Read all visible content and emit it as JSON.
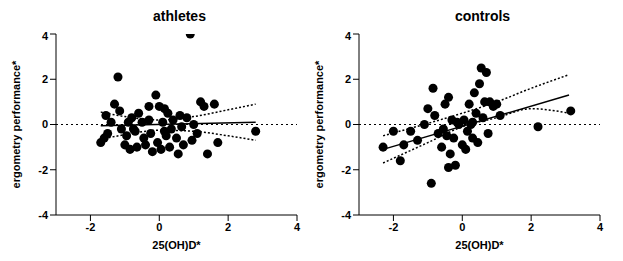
{
  "chart_data": [
    {
      "type": "scatter",
      "title": "athletes",
      "x_label": "25(OH)D*",
      "y_label": "ergometry performance*",
      "color": "#000000",
      "xlim": [
        -3,
        4
      ],
      "ylim": [
        -4,
        4
      ],
      "xticks": [
        -2,
        0,
        2,
        4
      ],
      "yticks": [
        -4,
        -2,
        0,
        2,
        4
      ],
      "x": [
        -1.7,
        -1.6,
        -1.5,
        -1.55,
        -1.4,
        -1.3,
        -1.2,
        -1.15,
        -1.1,
        -1.0,
        -0.95,
        -0.9,
        -0.85,
        -0.8,
        -0.7,
        -0.65,
        -0.6,
        -0.5,
        -0.45,
        -0.4,
        -0.3,
        -0.25,
        -0.2,
        -0.1,
        -0.05,
        0,
        0.05,
        0.1,
        0.15,
        0.2,
        0.25,
        0.3,
        0.35,
        0.4,
        0.5,
        0.55,
        0.6,
        0.7,
        0.8,
        0.9,
        0.95,
        1.0,
        1.1,
        1.2,
        1.3,
        1.4,
        1.6,
        1.7,
        2.8,
        -0.3,
        0.15,
        0.65,
        -0.75
      ],
      "values": [
        -0.8,
        -0.6,
        -0.4,
        0.4,
        0.1,
        0.9,
        2.1,
        0.6,
        -0.2,
        -0.9,
        -0.5,
        0.1,
        -1.1,
        0.3,
        -0.3,
        -1.0,
        0.5,
        0.1,
        -0.6,
        -0.9,
        0.2,
        -0.4,
        -1.2,
        1.3,
        -0.8,
        0.8,
        -1.1,
        0.1,
        0.7,
        -0.5,
        0.5,
        -1.0,
        -0.2,
        0.2,
        -0.6,
        -1.3,
        0.4,
        -0.9,
        0.3,
        4.0,
        -0.7,
        0.0,
        -0.4,
        1.0,
        0.8,
        -1.3,
        0.9,
        -0.8,
        -0.3,
        0.8,
        -0.3,
        -0.1,
        -0.2
      ],
      "fit": {
        "x": [
          -1.7,
          2.8
        ],
        "values": [
          -0.05,
          0.1
        ]
      },
      "confidence_band": {
        "x": [
          -1.7,
          -1.0,
          0,
          1.0,
          2.0,
          2.8
        ],
        "upper": [
          0.55,
          0.35,
          0.2,
          0.35,
          0.65,
          0.9
        ],
        "lower": [
          -0.65,
          -0.45,
          -0.25,
          -0.3,
          -0.5,
          -0.7
        ]
      },
      "reference_y": 0
    },
    {
      "type": "scatter",
      "title": "controls",
      "x_label": "25(OH)D*",
      "y_label": "ergometry performance*",
      "color": "#000000",
      "xlim": [
        -3,
        4
      ],
      "ylim": [
        -4,
        4
      ],
      "xticks": [
        -2,
        0,
        2,
        4
      ],
      "yticks": [
        -4,
        -2,
        0,
        2,
        4
      ],
      "x": [
        -2.3,
        -2.0,
        -1.8,
        -1.7,
        -1.5,
        -1.3,
        -1.1,
        -1.0,
        -0.9,
        -0.85,
        -0.8,
        -0.7,
        -0.6,
        -0.55,
        -0.5,
        -0.45,
        -0.4,
        -0.35,
        -0.3,
        -0.25,
        -0.2,
        -0.15,
        -0.1,
        0,
        0.05,
        0.1,
        0.15,
        0.2,
        0.25,
        0.3,
        0.35,
        0.4,
        0.45,
        0.5,
        0.55,
        0.6,
        0.65,
        0.7,
        0.75,
        0.8,
        0.9,
        1.0,
        1.1,
        2.2,
        3.15,
        -0.4,
        0.3
      ],
      "values": [
        -1.0,
        -0.3,
        -1.6,
        -0.9,
        -0.3,
        -0.7,
        0.0,
        0.7,
        -2.6,
        1.6,
        0.4,
        -0.4,
        -1.0,
        -0.2,
        0.9,
        -0.5,
        1.2,
        -1.3,
        0.2,
        -0.6,
        -1.8,
        0.1,
        0.0,
        -0.9,
        0.2,
        -1.1,
        -0.3,
        0.9,
        0.0,
        -0.6,
        1.4,
        0.5,
        -0.8,
        1.8,
        2.5,
        0.3,
        1.0,
        2.3,
        -0.4,
        1.0,
        0.8,
        0.9,
        0.4,
        -0.1,
        0.6,
        -1.9,
        0.1
      ],
      "fit": {
        "x": [
          -2.3,
          3.1
        ],
        "values": [
          -1.1,
          1.3
        ]
      },
      "confidence_band": {
        "x": [
          -2.3,
          -1.0,
          0,
          1.0,
          2.0,
          3.1
        ],
        "upper": [
          -0.5,
          0.05,
          0.5,
          1.0,
          1.6,
          2.2
        ],
        "lower": [
          -1.7,
          -0.8,
          -0.1,
          0.3,
          0.7,
          0.5
        ]
      },
      "reference_y": 0
    }
  ]
}
